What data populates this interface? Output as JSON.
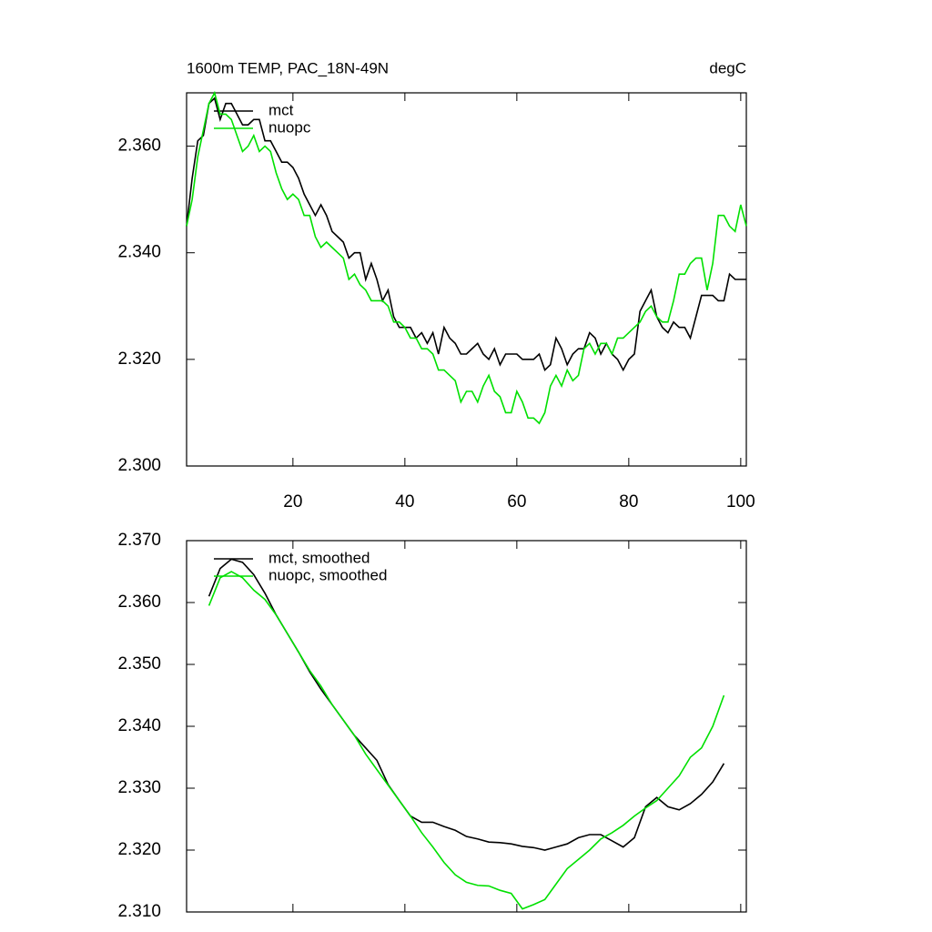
{
  "chart_data": [
    {
      "type": "line",
      "title": "1600m TEMP, PAC_18N-49N",
      "units": "degC",
      "x": [
        1,
        2,
        3,
        4,
        5,
        6,
        7,
        8,
        9,
        10,
        11,
        12,
        13,
        14,
        15,
        16,
        17,
        18,
        19,
        20,
        21,
        22,
        23,
        24,
        25,
        26,
        27,
        28,
        29,
        30,
        31,
        32,
        33,
        34,
        35,
        36,
        37,
        38,
        39,
        40,
        41,
        42,
        43,
        44,
        45,
        46,
        47,
        48,
        49,
        50,
        51,
        52,
        53,
        54,
        55,
        56,
        57,
        58,
        59,
        60,
        61,
        62,
        63,
        64,
        65,
        66,
        67,
        68,
        69,
        70,
        71,
        72,
        73,
        74,
        75,
        76,
        77,
        78,
        79,
        80,
        81,
        82,
        83,
        84,
        85,
        86,
        87,
        88,
        89,
        90,
        91,
        92,
        93,
        94,
        95,
        96,
        97,
        98,
        99,
        100,
        101
      ],
      "series": [
        {
          "name": "mct",
          "color": "#000000",
          "values": [
            2.345,
            2.354,
            2.361,
            2.362,
            2.368,
            2.369,
            2.365,
            2.368,
            2.368,
            2.366,
            2.364,
            2.364,
            2.365,
            2.365,
            2.361,
            2.361,
            2.359,
            2.357,
            2.357,
            2.356,
            2.354,
            2.351,
            2.349,
            2.347,
            2.349,
            2.347,
            2.344,
            2.343,
            2.342,
            2.339,
            2.34,
            2.34,
            2.335,
            2.338,
            2.335,
            2.331,
            2.333,
            2.328,
            2.326,
            2.326,
            2.326,
            2.324,
            2.325,
            2.323,
            2.325,
            2.321,
            2.326,
            2.324,
            2.323,
            2.321,
            2.321,
            2.322,
            2.323,
            2.321,
            2.32,
            2.322,
            2.319,
            2.321,
            2.321,
            2.321,
            2.32,
            2.32,
            2.32,
            2.321,
            2.318,
            2.319,
            2.324,
            2.322,
            2.319,
            2.321,
            2.322,
            2.322,
            2.325,
            2.324,
            2.321,
            2.323,
            2.321,
            2.32,
            2.318,
            2.32,
            2.321,
            2.329,
            2.331,
            2.333,
            2.328,
            2.326,
            2.325,
            2.327,
            2.326,
            2.326,
            2.324,
            2.328,
            2.332,
            2.332,
            2.332,
            2.331,
            2.331,
            2.336,
            2.335,
            2.335,
            2.335
          ]
        },
        {
          "name": "nuopc",
          "color": "#00e000",
          "values": [
            2.345,
            2.35,
            2.358,
            2.363,
            2.368,
            2.37,
            2.366,
            2.366,
            2.365,
            2.362,
            2.359,
            2.36,
            2.362,
            2.359,
            2.36,
            2.359,
            2.355,
            2.352,
            2.35,
            2.351,
            2.35,
            2.347,
            2.347,
            2.343,
            2.341,
            2.342,
            2.341,
            2.34,
            2.339,
            2.335,
            2.336,
            2.334,
            2.333,
            2.331,
            2.331,
            2.331,
            2.33,
            2.327,
            2.327,
            2.326,
            2.324,
            2.324,
            2.322,
            2.322,
            2.321,
            2.318,
            2.318,
            2.317,
            2.316,
            2.312,
            2.314,
            2.314,
            2.312,
            2.315,
            2.317,
            2.314,
            2.313,
            2.31,
            2.31,
            2.314,
            2.312,
            2.309,
            2.309,
            2.308,
            2.31,
            2.315,
            2.317,
            2.315,
            2.318,
            2.316,
            2.317,
            2.322,
            2.323,
            2.321,
            2.323,
            2.323,
            2.321,
            2.324,
            2.324,
            2.325,
            2.326,
            2.327,
            2.329,
            2.33,
            2.328,
            2.327,
            2.327,
            2.331,
            2.336,
            2.336,
            2.338,
            2.339,
            2.339,
            2.333,
            2.338,
            2.347,
            2.347,
            2.345,
            2.344,
            2.349,
            2.345
          ]
        }
      ],
      "xlim": [
        1,
        101
      ],
      "ylim": [
        2.3,
        2.37
      ],
      "xticks": [
        20,
        40,
        60,
        80,
        100
      ],
      "yticks": [
        {
          "value": 2.3,
          "label": "2.300"
        },
        {
          "value": 2.32,
          "label": "2.320"
        },
        {
          "value": 2.34,
          "label": "2.340"
        },
        {
          "value": 2.36,
          "label": "2.360"
        }
      ],
      "legend": "top-left",
      "xtick_labels": true
    },
    {
      "type": "line",
      "x": [
        5,
        7,
        9,
        11,
        13,
        15,
        17,
        19,
        21,
        23,
        25,
        27,
        29,
        31,
        33,
        35,
        37,
        39,
        41,
        43,
        45,
        47,
        49,
        51,
        53,
        55,
        57,
        59,
        61,
        63,
        65,
        67,
        69,
        71,
        73,
        75,
        77,
        79,
        81,
        83,
        85,
        87,
        89,
        91,
        93,
        95,
        97
      ],
      "series": [
        {
          "name": "mct, smoothed",
          "color": "#000000",
          "values": [
            2.361,
            2.3655,
            2.367,
            2.3665,
            2.3645,
            2.3615,
            2.358,
            2.355,
            2.352,
            2.3488,
            2.346,
            2.3435,
            2.341,
            2.3385,
            2.3365,
            2.3345,
            2.3306,
            2.328,
            2.3255,
            2.3245,
            2.3245,
            2.3238,
            2.3232,
            2.3222,
            2.3218,
            2.3213,
            2.3212,
            2.321,
            2.3206,
            2.3204,
            2.32,
            2.3205,
            2.321,
            2.322,
            2.3225,
            2.3225,
            2.3215,
            2.3205,
            2.322,
            2.327,
            2.3285,
            2.327,
            2.3265,
            2.3275,
            2.329,
            2.331,
            2.334
          ]
        },
        {
          "name": "nuopc, smoothed",
          "color": "#00e000",
          "values": [
            2.3595,
            2.364,
            2.365,
            2.364,
            2.362,
            2.3605,
            2.358,
            2.355,
            2.352,
            2.349,
            2.3465,
            2.3435,
            2.341,
            2.3385,
            2.3355,
            2.333,
            2.3305,
            2.328,
            2.3255,
            2.3228,
            2.3205,
            2.318,
            2.316,
            2.3148,
            2.3143,
            2.3142,
            2.3135,
            2.313,
            2.3105,
            2.3112,
            2.312,
            2.3145,
            2.317,
            2.3185,
            2.32,
            2.3218,
            2.3228,
            2.324,
            2.3255,
            2.3268,
            2.328,
            2.33,
            2.332,
            2.335,
            2.3365,
            2.34,
            2.345
          ]
        }
      ],
      "xlim": [
        1,
        101
      ],
      "ylim": [
        2.31,
        2.37
      ],
      "xticks": [
        20,
        40,
        60,
        80,
        100
      ],
      "yticks": [
        {
          "value": 2.31,
          "label": "2.310"
        },
        {
          "value": 2.32,
          "label": "2.320"
        },
        {
          "value": 2.33,
          "label": "2.330"
        },
        {
          "value": 2.34,
          "label": "2.340"
        },
        {
          "value": 2.35,
          "label": "2.350"
        },
        {
          "value": 2.36,
          "label": "2.360"
        },
        {
          "value": 2.37,
          "label": "2.370"
        }
      ],
      "legend": "top-left",
      "xtick_labels": false
    }
  ]
}
